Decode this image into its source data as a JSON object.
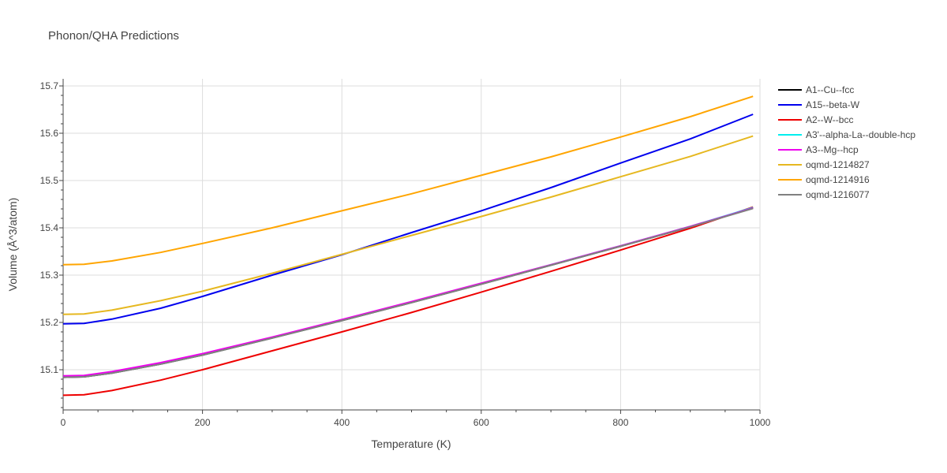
{
  "chart_data": {
    "type": "line",
    "title": "Phonon/QHA Predictions",
    "xlabel": "Temperature (K)",
    "ylabel": "Volume (Å^3/atom)",
    "xlim": [
      0,
      1000
    ],
    "ylim": [
      15.015,
      15.715
    ],
    "x_ticks": [
      0,
      200,
      400,
      600,
      800,
      1000
    ],
    "y_ticks": [
      15.1,
      15.2,
      15.3,
      15.4,
      15.5,
      15.6,
      15.7
    ],
    "grid": true,
    "legend_position": "top-right",
    "series": [
      {
        "name": "A1--Cu--fcc",
        "color": "#000000",
        "x": [
          0,
          30,
          70,
          140,
          200,
          300,
          400,
          500,
          600,
          700,
          800,
          900,
          990
        ],
        "y": [
          15.084,
          15.085,
          15.093,
          15.112,
          15.131,
          15.167,
          15.204,
          15.242,
          15.281,
          15.321,
          15.361,
          15.402,
          15.442
        ]
      },
      {
        "name": "A15--beta-W",
        "color": "#0000ee",
        "x": [
          0,
          30,
          70,
          140,
          200,
          300,
          400,
          500,
          600,
          700,
          800,
          900,
          990
        ],
        "y": [
          15.197,
          15.198,
          15.207,
          15.23,
          15.255,
          15.3,
          15.343,
          15.39,
          15.436,
          15.485,
          15.537,
          15.588,
          15.64
        ]
      },
      {
        "name": "A2--W--bcc",
        "color": "#ee0000",
        "x": [
          0,
          30,
          70,
          140,
          200,
          300,
          400,
          500,
          600,
          700,
          800,
          900,
          990
        ],
        "y": [
          15.046,
          15.047,
          15.056,
          15.078,
          15.1,
          15.14,
          15.18,
          15.221,
          15.264,
          15.308,
          15.353,
          15.399,
          15.444
        ]
      },
      {
        "name": "A3'--alpha-La--double-hcp",
        "color": "#00eeee",
        "x": [
          0,
          30,
          70,
          140,
          200,
          300,
          400,
          500,
          600,
          700,
          800,
          900,
          990
        ],
        "y": [
          15.085,
          15.086,
          15.094,
          15.113,
          15.132,
          15.168,
          15.205,
          15.243,
          15.282,
          15.322,
          15.362,
          15.403,
          15.443
        ]
      },
      {
        "name": "A3--Mg--hcp",
        "color": "#ee00ee",
        "x": [
          0,
          30,
          70,
          140,
          200,
          300,
          400,
          500,
          600,
          700,
          800,
          900,
          990
        ],
        "y": [
          15.087,
          15.088,
          15.096,
          15.115,
          15.134,
          15.169,
          15.206,
          15.244,
          15.283,
          15.322,
          15.362,
          15.403,
          15.442
        ]
      },
      {
        "name": "oqmd-1214827",
        "color": "#e6b820",
        "x": [
          0,
          30,
          70,
          140,
          200,
          300,
          400,
          500,
          600,
          700,
          800,
          900,
          990
        ],
        "y": [
          15.217,
          15.218,
          15.226,
          15.246,
          15.266,
          15.304,
          15.344,
          15.384,
          15.424,
          15.465,
          15.508,
          15.551,
          15.594
        ]
      },
      {
        "name": "oqmd-1214916",
        "color": "#ffa500",
        "x": [
          0,
          30,
          70,
          140,
          200,
          300,
          400,
          500,
          600,
          700,
          800,
          900,
          990
        ],
        "y": [
          15.322,
          15.323,
          15.33,
          15.348,
          15.367,
          15.4,
          15.436,
          15.472,
          15.511,
          15.55,
          15.592,
          15.635,
          15.678
        ]
      },
      {
        "name": "oqmd-1216077",
        "color": "#808080",
        "x": [
          0,
          30,
          70,
          140,
          200,
          300,
          400,
          500,
          600,
          700,
          800,
          900,
          990
        ],
        "y": [
          15.084,
          15.085,
          15.093,
          15.112,
          15.131,
          15.167,
          15.204,
          15.242,
          15.281,
          15.321,
          15.361,
          15.402,
          15.441
        ]
      }
    ]
  }
}
